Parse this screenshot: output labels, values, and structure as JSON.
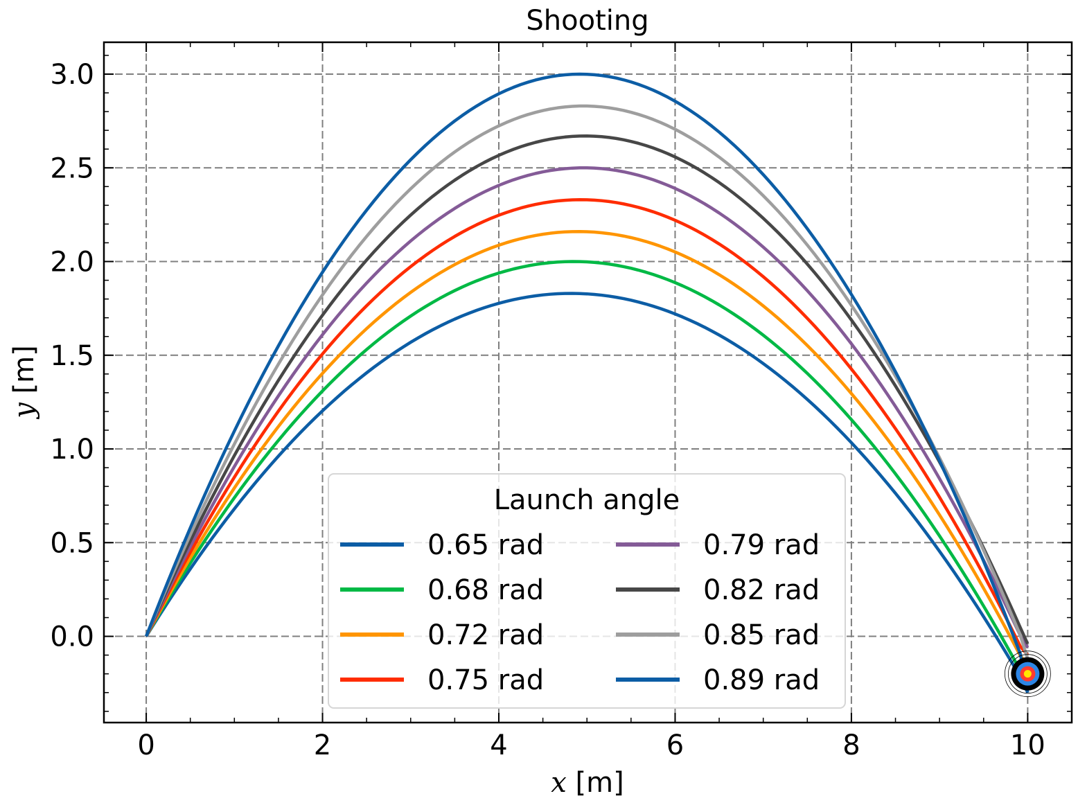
{
  "chart_data": {
    "type": "line",
    "title": "Shooting",
    "xlabel_var": "x",
    "xlabel_unit": " [m]",
    "ylabel_var": "y",
    "ylabel_unit": " [m]",
    "xlim": [
      -0.48,
      10.5
    ],
    "ylim": [
      -0.46,
      3.17
    ],
    "xticks": [
      0,
      2,
      4,
      6,
      8,
      10
    ],
    "xtick_labels": [
      "0",
      "2",
      "4",
      "6",
      "8",
      "10"
    ],
    "yticks": [
      0.0,
      0.5,
      1.0,
      1.5,
      2.0,
      2.5,
      3.0
    ],
    "ytick_labels": [
      "0.0",
      "0.5",
      "1.0",
      "1.5",
      "2.0",
      "2.5",
      "3.0"
    ],
    "grid": true,
    "legend": {
      "title": "Launch angle",
      "position": "bottom-center",
      "columns": 2
    },
    "target": {
      "x": 10.0,
      "y": -0.2
    },
    "series": [
      {
        "name": "0.65 rad",
        "color": "#0C5DA5",
        "apex": [
          4.82,
          1.83
        ],
        "end": [
          10.0,
          -0.3
        ]
      },
      {
        "name": "0.68 rad",
        "color": "#00B945",
        "apex": [
          4.85,
          2.0
        ],
        "end": [
          10.0,
          -0.22
        ]
      },
      {
        "name": "0.72 rad",
        "color": "#FF9500",
        "apex": [
          4.9,
          2.16
        ],
        "end": [
          10.0,
          -0.15
        ]
      },
      {
        "name": "0.75 rad",
        "color": "#FF2C00",
        "apex": [
          4.93,
          2.33
        ],
        "end": [
          10.0,
          -0.1
        ]
      },
      {
        "name": "0.79 rad",
        "color": "#845B97",
        "apex": [
          4.96,
          2.5
        ],
        "end": [
          10.0,
          -0.06
        ]
      },
      {
        "name": "0.82 rad",
        "color": "#474747",
        "apex": [
          4.98,
          2.67
        ],
        "end": [
          10.0,
          -0.04
        ]
      },
      {
        "name": "0.85 rad",
        "color": "#9E9E9E",
        "apex": [
          4.96,
          2.83
        ],
        "end": [
          10.0,
          -0.12
        ]
      },
      {
        "name": "0.89 rad",
        "color": "#0C5DA5",
        "apex": [
          4.92,
          3.0
        ],
        "end": [
          10.0,
          -0.3
        ]
      }
    ]
  }
}
